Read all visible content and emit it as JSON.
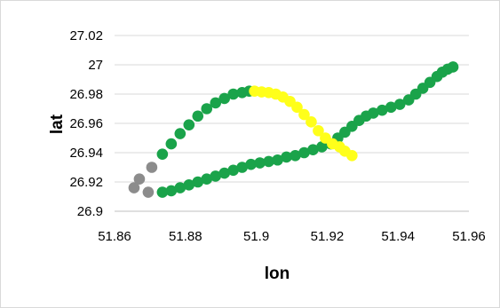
{
  "chart_data": {
    "type": "scatter",
    "title": "",
    "xlabel": "lon",
    "ylabel": "lat",
    "xlim": [
      51.86,
      51.96
    ],
    "ylim": [
      26.9,
      27.02
    ],
    "x_ticks": [
      "51.86",
      "51.88",
      "51.9",
      "51.92",
      "51.94",
      "51.96"
    ],
    "y_ticks": [
      "26.9",
      "26.92",
      "26.94",
      "26.96",
      "26.98",
      "27",
      "27.02"
    ],
    "grid": "horizontal",
    "legend": "none",
    "series": [
      {
        "color": "#8c8c8c",
        "points": [
          [
            51.8655,
            26.916
          ],
          [
            51.867,
            26.922
          ],
          [
            51.8695,
            26.913
          ],
          [
            51.8705,
            26.93
          ]
        ]
      },
      {
        "color": "#1aa34a",
        "points": [
          [
            51.8735,
            26.913
          ],
          [
            51.876,
            26.914
          ],
          [
            51.8785,
            26.916
          ],
          [
            51.881,
            26.918
          ],
          [
            51.8835,
            26.92
          ],
          [
            51.886,
            26.922
          ],
          [
            51.8885,
            26.924
          ],
          [
            51.891,
            26.926
          ],
          [
            51.8935,
            26.928
          ],
          [
            51.896,
            26.93
          ],
          [
            51.8985,
            26.932
          ],
          [
            51.901,
            26.933
          ],
          [
            51.9035,
            26.934
          ],
          [
            51.906,
            26.935
          ],
          [
            51.9085,
            26.937
          ],
          [
            51.911,
            26.938
          ],
          [
            51.9135,
            26.94
          ],
          [
            51.916,
            26.942
          ],
          [
            51.9185,
            26.944
          ],
          [
            51.921,
            26.946
          ],
          [
            51.923,
            26.95
          ],
          [
            51.925,
            26.954
          ],
          [
            51.927,
            26.958
          ],
          [
            51.929,
            26.962
          ],
          [
            51.931,
            26.965
          ],
          [
            51.933,
            26.967
          ],
          [
            51.9355,
            26.969
          ],
          [
            51.938,
            26.971
          ],
          [
            51.9405,
            26.973
          ],
          [
            51.943,
            26.976
          ],
          [
            51.945,
            26.98
          ],
          [
            51.947,
            26.984
          ],
          [
            51.949,
            26.988
          ],
          [
            51.951,
            26.992
          ],
          [
            51.9525,
            26.995
          ],
          [
            51.954,
            26.997
          ],
          [
            51.9555,
            26.9985
          ],
          [
            51.8735,
            26.939
          ],
          [
            51.876,
            26.946
          ],
          [
            51.8785,
            26.953
          ],
          [
            51.881,
            26.959
          ],
          [
            51.8835,
            26.965
          ],
          [
            51.886,
            26.97
          ],
          [
            51.8885,
            26.974
          ],
          [
            51.891,
            26.977
          ],
          [
            51.8935,
            26.98
          ],
          [
            51.896,
            26.981
          ],
          [
            51.898,
            26.982
          ]
        ]
      },
      {
        "color": "#ffff1a",
        "points": [
          [
            51.8995,
            26.982
          ],
          [
            51.9015,
            26.9815
          ],
          [
            51.9035,
            26.981
          ],
          [
            51.9055,
            26.98
          ],
          [
            51.9075,
            26.978
          ],
          [
            51.9095,
            26.975
          ],
          [
            51.9115,
            26.971
          ],
          [
            51.9135,
            26.966
          ],
          [
            51.9155,
            26.961
          ],
          [
            51.9175,
            26.955
          ],
          [
            51.9195,
            26.95
          ],
          [
            51.9215,
            26.946
          ],
          [
            51.9235,
            26.944
          ],
          [
            51.925,
            26.941
          ],
          [
            51.927,
            26.938
          ]
        ]
      }
    ]
  }
}
